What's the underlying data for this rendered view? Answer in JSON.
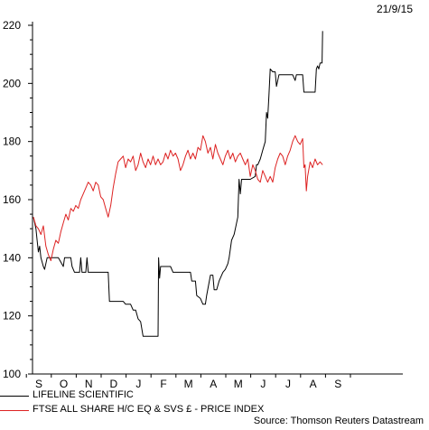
{
  "header": {
    "date": "21/9/15"
  },
  "colors": {
    "lifeline": "#000000",
    "ftse": "#dd2222",
    "axis": "#000000"
  },
  "chart_data": {
    "type": "line",
    "x_ticks": [
      "S",
      "O",
      "N",
      "D",
      "J",
      "F",
      "M",
      "A",
      "M",
      "J",
      "J",
      "A",
      "S"
    ],
    "ylim": [
      100,
      220
    ],
    "y_ticks": [
      100,
      120,
      140,
      160,
      180,
      200,
      220
    ],
    "grid": false,
    "legend_position": "bottom-left",
    "series": [
      {
        "name": "LIFELINE SCIENTIFIC",
        "color": "#000000",
        "points": [
          [
            0.0,
            154
          ],
          [
            0.1,
            150
          ],
          [
            0.15,
            146
          ],
          [
            0.2,
            142
          ],
          [
            0.25,
            144
          ],
          [
            0.3,
            140
          ],
          [
            0.4,
            137
          ],
          [
            0.45,
            136
          ],
          [
            0.55,
            140
          ],
          [
            1.0,
            140
          ],
          [
            1.2,
            137
          ],
          [
            1.25,
            140
          ],
          [
            1.5,
            140
          ],
          [
            1.55,
            137
          ],
          [
            1.65,
            135
          ],
          [
            1.85,
            135
          ],
          [
            1.9,
            140
          ],
          [
            1.95,
            135
          ],
          [
            2.1,
            135
          ],
          [
            2.15,
            140
          ],
          [
            2.2,
            135
          ],
          [
            3.0,
            135
          ],
          [
            3.05,
            125
          ],
          [
            3.6,
            125
          ],
          [
            3.7,
            124
          ],
          [
            3.9,
            124
          ],
          [
            4.0,
            122
          ],
          [
            4.1,
            122
          ],
          [
            4.2,
            119
          ],
          [
            4.3,
            118
          ],
          [
            4.4,
            113
          ],
          [
            5.0,
            113
          ],
          [
            5.02,
            140
          ],
          [
            5.06,
            133
          ],
          [
            5.1,
            137
          ],
          [
            5.3,
            137
          ],
          [
            5.5,
            137
          ],
          [
            5.6,
            135
          ],
          [
            6.0,
            135
          ],
          [
            6.3,
            135
          ],
          [
            6.35,
            132
          ],
          [
            6.5,
            132
          ],
          [
            6.55,
            127
          ],
          [
            6.7,
            126
          ],
          [
            6.8,
            124
          ],
          [
            6.9,
            124
          ],
          [
            6.95,
            127
          ],
          [
            7.1,
            134
          ],
          [
            7.2,
            134
          ],
          [
            7.25,
            129
          ],
          [
            7.35,
            129
          ],
          [
            7.45,
            132
          ],
          [
            7.6,
            135
          ],
          [
            7.7,
            136
          ],
          [
            7.8,
            138
          ],
          [
            7.85,
            140
          ],
          [
            7.95,
            146
          ],
          [
            8.05,
            148
          ],
          [
            8.1,
            150
          ],
          [
            8.2,
            154
          ],
          [
            8.25,
            167
          ],
          [
            8.3,
            162
          ],
          [
            8.35,
            167
          ],
          [
            8.55,
            167
          ],
          [
            8.7,
            167
          ],
          [
            8.9,
            168
          ],
          [
            8.95,
            172
          ],
          [
            9.0,
            172
          ],
          [
            9.1,
            174
          ],
          [
            9.2,
            177
          ],
          [
            9.3,
            180
          ],
          [
            9.35,
            190
          ],
          [
            9.4,
            188
          ],
          [
            9.45,
            196
          ],
          [
            9.5,
            205
          ],
          [
            9.6,
            204
          ],
          [
            9.7,
            204
          ],
          [
            9.75,
            199
          ],
          [
            9.85,
            203
          ],
          [
            10.3,
            203
          ],
          [
            10.4,
            203
          ],
          [
            10.5,
            201
          ],
          [
            10.55,
            203
          ],
          [
            10.8,
            203
          ],
          [
            10.85,
            197
          ],
          [
            11.3,
            197
          ],
          [
            11.35,
            205
          ],
          [
            11.4,
            206
          ],
          [
            11.45,
            205
          ],
          [
            11.5,
            207
          ],
          [
            11.58,
            207
          ],
          [
            11.6,
            218
          ]
        ]
      },
      {
        "name": "FTSE ALL SHARE H/C EQ & SVS £ - PRICE INDEX",
        "color": "#dd2222",
        "points": [
          [
            0.0,
            154
          ],
          [
            0.1,
            151
          ],
          [
            0.2,
            150
          ],
          [
            0.3,
            148
          ],
          [
            0.4,
            151
          ],
          [
            0.5,
            144
          ],
          [
            0.6,
            141
          ],
          [
            0.7,
            139
          ],
          [
            0.8,
            143
          ],
          [
            0.9,
            146
          ],
          [
            1.0,
            145
          ],
          [
            1.1,
            149
          ],
          [
            1.2,
            152
          ],
          [
            1.3,
            155
          ],
          [
            1.4,
            153
          ],
          [
            1.5,
            157
          ],
          [
            1.6,
            156
          ],
          [
            1.7,
            158
          ],
          [
            1.8,
            157
          ],
          [
            1.9,
            160
          ],
          [
            2.0,
            162
          ],
          [
            2.1,
            164
          ],
          [
            2.2,
            166
          ],
          [
            2.3,
            165
          ],
          [
            2.4,
            163
          ],
          [
            2.5,
            166
          ],
          [
            2.6,
            165
          ],
          [
            2.7,
            161
          ],
          [
            2.8,
            160
          ],
          [
            2.9,
            157
          ],
          [
            3.0,
            154
          ],
          [
            3.1,
            158
          ],
          [
            3.2,
            164
          ],
          [
            3.3,
            169
          ],
          [
            3.4,
            173
          ],
          [
            3.5,
            174
          ],
          [
            3.6,
            175
          ],
          [
            3.7,
            171
          ],
          [
            3.8,
            174
          ],
          [
            3.9,
            173
          ],
          [
            4.0,
            175
          ],
          [
            4.1,
            170
          ],
          [
            4.2,
            172
          ],
          [
            4.3,
            176
          ],
          [
            4.4,
            173
          ],
          [
            4.5,
            171
          ],
          [
            4.6,
            174
          ],
          [
            4.7,
            172
          ],
          [
            4.8,
            175
          ],
          [
            4.9,
            172
          ],
          [
            5.0,
            174
          ],
          [
            5.1,
            172
          ],
          [
            5.2,
            173
          ],
          [
            5.3,
            176
          ],
          [
            5.4,
            174
          ],
          [
            5.5,
            177
          ],
          [
            5.6,
            175
          ],
          [
            5.7,
            176
          ],
          [
            5.8,
            174
          ],
          [
            5.9,
            170
          ],
          [
            6.0,
            172
          ],
          [
            6.1,
            175
          ],
          [
            6.2,
            177
          ],
          [
            6.3,
            174
          ],
          [
            6.4,
            176
          ],
          [
            6.5,
            174
          ],
          [
            6.6,
            178
          ],
          [
            6.7,
            177
          ],
          [
            6.8,
            182
          ],
          [
            6.9,
            180
          ],
          [
            7.0,
            176
          ],
          [
            7.1,
            178
          ],
          [
            7.2,
            174
          ],
          [
            7.3,
            179
          ],
          [
            7.4,
            176
          ],
          [
            7.5,
            174
          ],
          [
            7.6,
            172
          ],
          [
            7.7,
            175
          ],
          [
            7.8,
            177
          ],
          [
            7.9,
            174
          ],
          [
            8.0,
            176
          ],
          [
            8.1,
            173
          ],
          [
            8.2,
            175
          ],
          [
            8.3,
            176
          ],
          [
            8.4,
            174
          ],
          [
            8.5,
            172
          ],
          [
            8.6,
            174
          ],
          [
            8.7,
            168
          ],
          [
            8.8,
            172
          ],
          [
            8.9,
            170
          ],
          [
            9.0,
            167
          ],
          [
            9.1,
            166
          ],
          [
            9.2,
            170
          ],
          [
            9.3,
            168
          ],
          [
            9.4,
            166
          ],
          [
            9.5,
            168
          ],
          [
            9.6,
            166
          ],
          [
            9.7,
            171
          ],
          [
            9.8,
            174
          ],
          [
            9.9,
            176
          ],
          [
            10.0,
            175
          ],
          [
            10.1,
            172
          ],
          [
            10.2,
            175
          ],
          [
            10.3,
            177
          ],
          [
            10.4,
            180
          ],
          [
            10.5,
            182
          ],
          [
            10.6,
            180
          ],
          [
            10.7,
            179
          ],
          [
            10.8,
            181
          ],
          [
            10.85,
            171
          ],
          [
            10.9,
            172
          ],
          [
            10.95,
            163
          ],
          [
            11.0,
            168
          ],
          [
            11.1,
            173
          ],
          [
            11.2,
            171
          ],
          [
            11.3,
            174
          ],
          [
            11.4,
            172
          ],
          [
            11.5,
            173
          ],
          [
            11.6,
            172
          ]
        ]
      }
    ]
  },
  "legend": [
    {
      "label": "LIFELINE SCIENTIFIC"
    },
    {
      "label": "FTSE ALL SHARE H/C EQ & SVS £ - PRICE INDEX"
    }
  ],
  "source": "Source: Thomson Reuters Datastream"
}
